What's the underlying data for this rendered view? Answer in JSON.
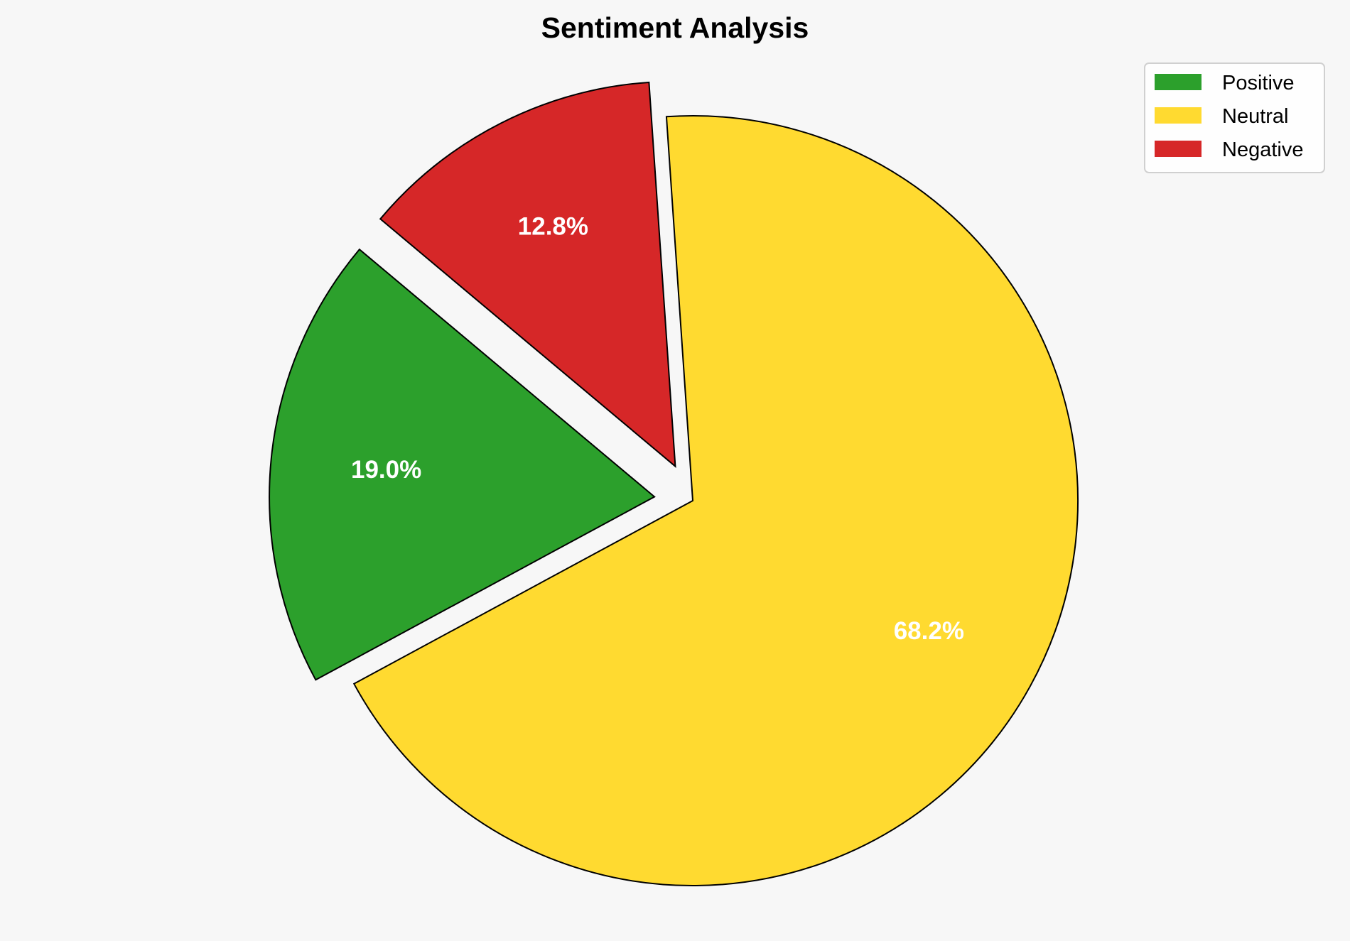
{
  "chart_data": {
    "type": "pie",
    "title": "Sentiment Analysis",
    "categories": [
      "Positive",
      "Neutral",
      "Negative"
    ],
    "values": [
      19.0,
      68.2,
      12.8
    ],
    "labels": [
      "19.0%",
      "68.2%",
      "12.8%"
    ],
    "colors": [
      "#2ca02c",
      "#ffda30",
      "#d62728"
    ],
    "exploded": [
      true,
      false,
      true
    ],
    "start_angle": 140,
    "direction": "counterclockwise",
    "legend_position": "top-right",
    "legend": [
      "Positive",
      "Neutral",
      "Negative"
    ]
  }
}
